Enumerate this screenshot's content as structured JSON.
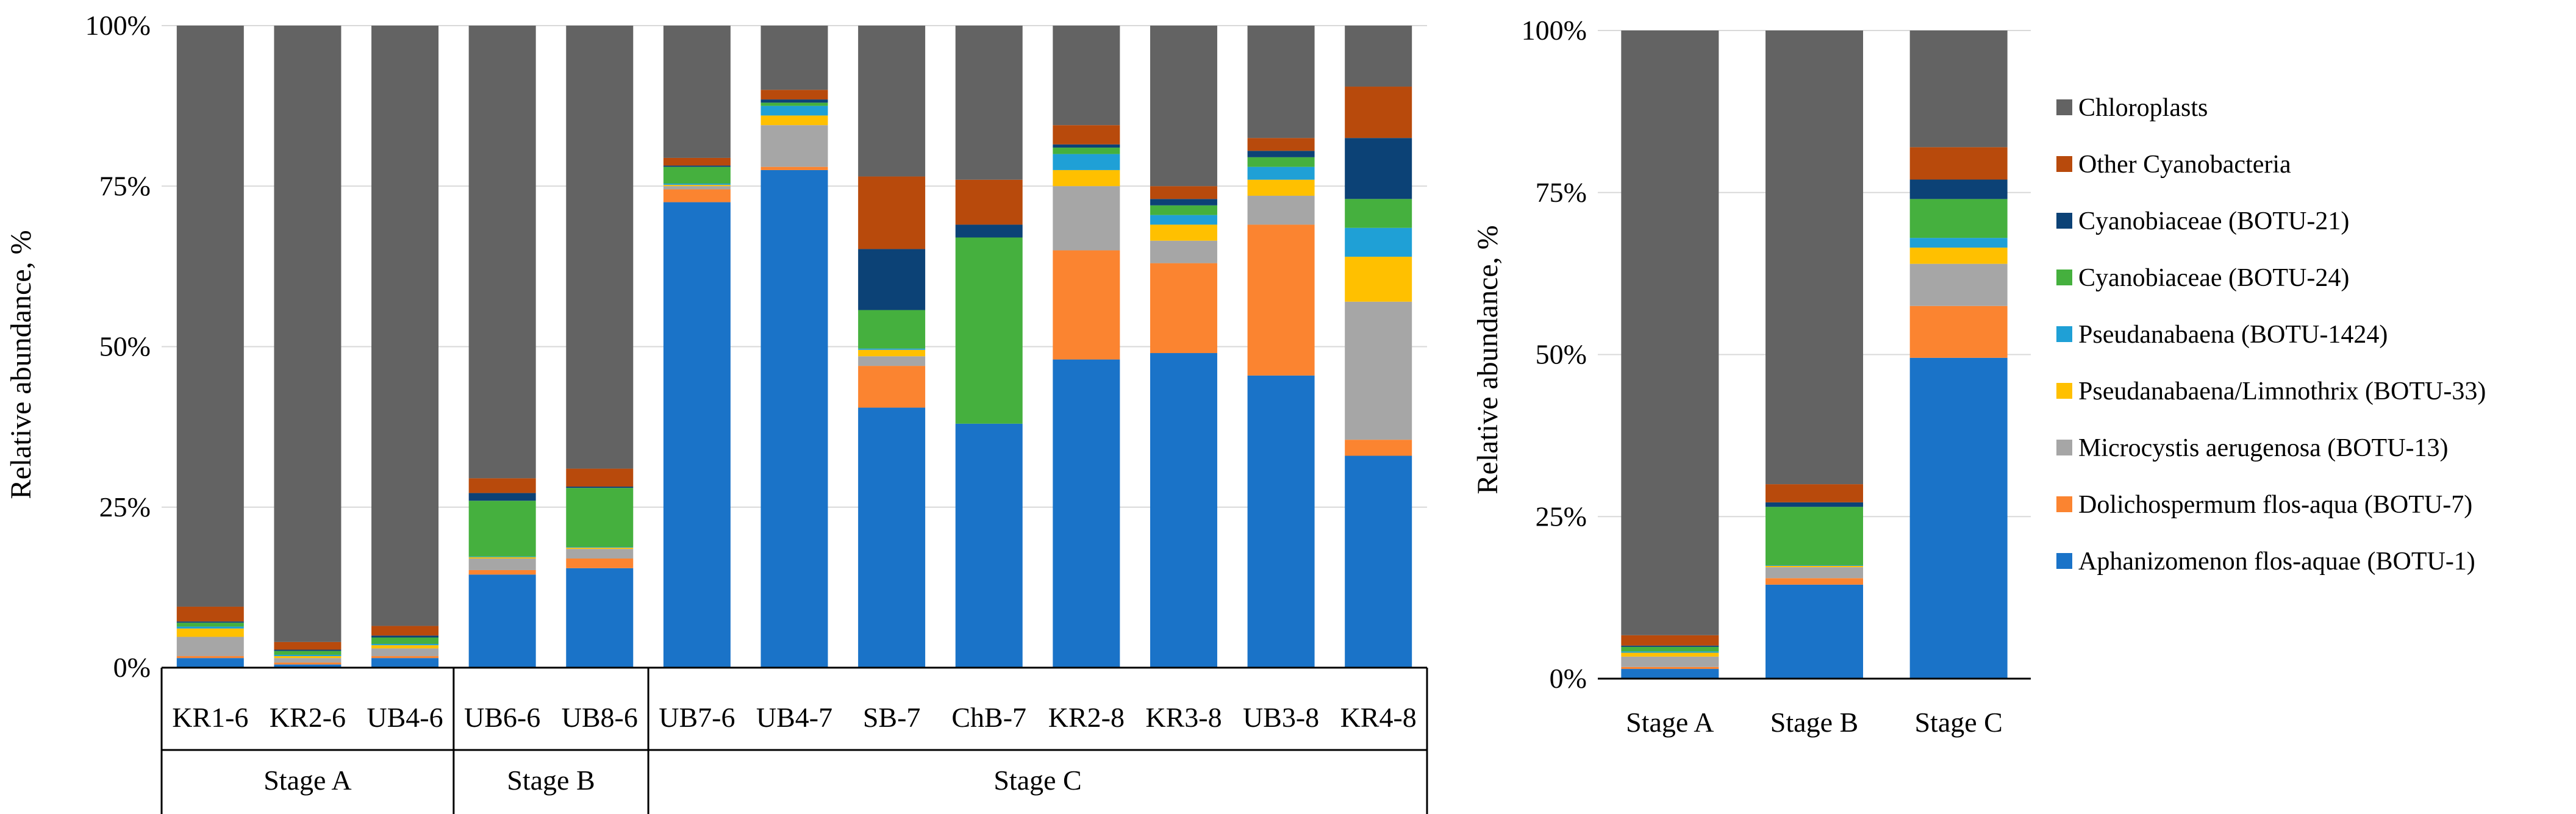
{
  "colors": {
    "chloroplasts": "#636363",
    "other_cyanobacteria": "#b84a0c",
    "botu21": "#0c4276",
    "botu24": "#45b03e",
    "botu1424": "#1fa0d6",
    "botu33": "#ffc000",
    "botu13": "#a6a6a6",
    "botu7": "#fb8430",
    "botu1": "#1a73c8"
  },
  "chart_data": [
    {
      "type": "bar",
      "stacked": true,
      "title": "",
      "xlabel": "",
      "ylabel": "Relative abundance, %",
      "ylim": [
        0,
        100
      ],
      "y_ticks": [
        "0%",
        "25%",
        "50%",
        "75%",
        "100%"
      ],
      "grid": true,
      "categories": [
        "KR1-6",
        "KR2-6",
        "UB4-6",
        "UB6-6",
        "UB8-6",
        "UB7-6",
        "UB4-7",
        "SB-7",
        "ChB-7",
        "KR2-8",
        "KR3-8",
        "UB3-8",
        "KR4-8"
      ],
      "groups": [
        {
          "label": "Stage A",
          "categories": [
            "KR1-6",
            "KR2-6",
            "UB4-6"
          ]
        },
        {
          "label": "Stage B",
          "categories": [
            "UB6-6",
            "UB8-6"
          ]
        },
        {
          "label": "Stage C",
          "categories": [
            "UB7-6",
            "UB4-7",
            "SB-7",
            "ChB-7",
            "KR2-8",
            "KR3-8",
            "UB3-8",
            "KR4-8"
          ]
        }
      ],
      "series": [
        {
          "name": "Aphanizomenon flos-aquae (BOTU-1)",
          "color_key": "botu1",
          "values": [
            1.5,
            0.5,
            1.5,
            14.5,
            15.5,
            72.5,
            77.5,
            40.5,
            38.0,
            48.0,
            49.0,
            45.5,
            33.0
          ]
        },
        {
          "name": "Dolichospermum flos-aqua (BOTU-7)",
          "color_key": "botu7",
          "values": [
            0.3,
            0.3,
            0.3,
            0.7,
            1.5,
            2.0,
            0.5,
            6.5,
            0.0,
            17.0,
            14.0,
            23.5,
            2.5
          ]
        },
        {
          "name": "Microcystis aerugenosa (BOTU-13)",
          "color_key": "botu13",
          "values": [
            3.0,
            0.7,
            1.2,
            1.8,
            1.5,
            0.5,
            6.5,
            1.5,
            0.0,
            10.0,
            3.5,
            4.5,
            21.5
          ]
        },
        {
          "name": "Pseudanabaena/Limnothrix (BOTU-33)",
          "color_key": "botu33",
          "values": [
            1.3,
            0.3,
            0.5,
            0.2,
            0.2,
            0.2,
            1.5,
            1.0,
            0.0,
            2.5,
            2.5,
            2.5,
            7.0
          ]
        },
        {
          "name": "Pseudanabaena (BOTU-1424)",
          "color_key": "botu1424",
          "values": [
            0.3,
            0.2,
            0.2,
            0.1,
            0.1,
            0.2,
            1.5,
            0.2,
            0.0,
            2.5,
            1.5,
            2.0,
            4.5
          ]
        },
        {
          "name": "Cyanobiaceae  (BOTU-24)",
          "color_key": "botu24",
          "values": [
            0.6,
            0.6,
            1.0,
            8.7,
            9.2,
            2.6,
            0.5,
            6.0,
            29.0,
            1.0,
            1.5,
            1.5,
            4.5
          ]
        },
        {
          "name": "Cyanobiaceae  (BOTU-21)",
          "color_key": "botu21",
          "values": [
            0.2,
            0.2,
            0.3,
            1.2,
            0.2,
            0.2,
            0.5,
            9.5,
            2.0,
            0.5,
            1.0,
            1.0,
            9.5
          ]
        },
        {
          "name": "Other Cyanobacteria",
          "color_key": "other_cyanobacteria",
          "values": [
            2.3,
            1.2,
            1.5,
            2.3,
            2.8,
            1.2,
            1.5,
            11.3,
            7.0,
            3.0,
            2.0,
            2.0,
            8.0
          ]
        },
        {
          "name": "Chloroplasts",
          "color_key": "chloroplasts",
          "values": [
            90.5,
            96.0,
            93.5,
            70.5,
            69.0,
            20.6,
            10.0,
            23.5,
            24.0,
            15.5,
            25.0,
            17.5,
            9.5
          ]
        }
      ]
    },
    {
      "type": "bar",
      "stacked": true,
      "title": "",
      "xlabel": "",
      "ylabel": "Relative abundance, %",
      "ylim": [
        0,
        100
      ],
      "y_ticks": [
        "0%",
        "25%",
        "50%",
        "75%",
        "100%"
      ],
      "grid": true,
      "categories": [
        "Stage A",
        "Stage B",
        "Stage C"
      ],
      "legend_position": "right",
      "series": [
        {
          "name": "Aphanizomenon flos-aquae (BOTU-1)",
          "color_key": "botu1",
          "values": [
            1.5,
            14.5,
            49.5
          ]
        },
        {
          "name": "Dolichospermum flos-aqua (BOTU-7)",
          "color_key": "botu7",
          "values": [
            0.3,
            1.0,
            8.0
          ]
        },
        {
          "name": "Microcystis aerugenosa (BOTU-13)",
          "color_key": "botu13",
          "values": [
            1.6,
            1.7,
            6.5
          ]
        },
        {
          "name": "Pseudanabaena/Limnothrix (BOTU-33)",
          "color_key": "botu33",
          "values": [
            0.6,
            0.2,
            2.5
          ]
        },
        {
          "name": "Pseudanabaena (BOTU-1424)",
          "color_key": "botu1424",
          "values": [
            0.2,
            0.1,
            1.5
          ]
        },
        {
          "name": "Cyanobiaceae  (BOTU-24)",
          "color_key": "botu24",
          "values": [
            0.7,
            9.0,
            6.0
          ]
        },
        {
          "name": "Cyanobiaceae  (BOTU-21)",
          "color_key": "botu21",
          "values": [
            0.2,
            0.7,
            3.0
          ]
        },
        {
          "name": "Other Cyanobacteria",
          "color_key": "other_cyanobacteria",
          "values": [
            1.6,
            2.8,
            5.0
          ]
        },
        {
          "name": "Chloroplasts",
          "color_key": "chloroplasts",
          "values": [
            93.3,
            70.0,
            18.0
          ]
        }
      ]
    }
  ],
  "legend": [
    {
      "label": "Chloroplasts",
      "color_key": "chloroplasts"
    },
    {
      "label": "Other Cyanobacteria",
      "color_key": "other_cyanobacteria"
    },
    {
      "label": "Cyanobiaceae  (BOTU-21)",
      "color_key": "botu21"
    },
    {
      "label": "Cyanobiaceae  (BOTU-24)",
      "color_key": "botu24"
    },
    {
      "label": "Pseudanabaena (BOTU-1424)",
      "color_key": "botu1424"
    },
    {
      "label": "Pseudanabaena/Limnothrix (BOTU-33)",
      "color_key": "botu33"
    },
    {
      "label": "Microcystis aerugenosa (BOTU-13)",
      "color_key": "botu13"
    },
    {
      "label": "Dolichospermum flos-aqua (BOTU-7)",
      "color_key": "botu7"
    },
    {
      "label": "Aphanizomenon flos-aquae (BOTU-1)",
      "color_key": "botu1"
    }
  ]
}
